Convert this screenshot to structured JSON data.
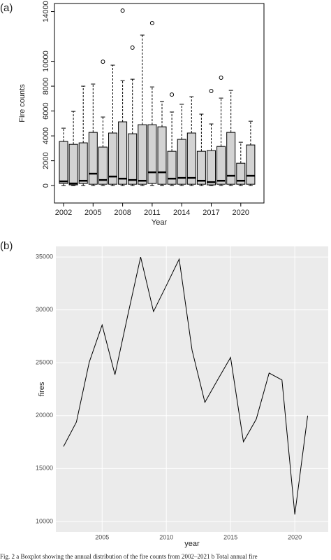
{
  "chart_data": [
    {
      "type": "box",
      "label": "(a)",
      "y_label": "Fire counts",
      "x_label": "Year",
      "color": "#d3d3d3",
      "categories": [
        "2002",
        null,
        null,
        "2005",
        null,
        null,
        "2008",
        null,
        null,
        "2011",
        null,
        null,
        "2014",
        null,
        null,
        "2017",
        null,
        null,
        "2020",
        null
      ],
      "boxes": [
        {
          "min": 0,
          "q1": 170,
          "median": 340,
          "q3": 3550,
          "max": 4620,
          "outliers": []
        },
        {
          "min": 0,
          "q1": 60,
          "median": 170,
          "q3": 3320,
          "max": 5970,
          "outliers": []
        },
        {
          "min": 0,
          "q1": 170,
          "median": 390,
          "q3": 3440,
          "max": 8000,
          "outliers": []
        },
        {
          "min": 0,
          "q1": 110,
          "median": 960,
          "q3": 4280,
          "max": 8170,
          "outliers": []
        },
        {
          "min": 0,
          "q1": 110,
          "median": 450,
          "q3": 3100,
          "max": 5520,
          "outliers": [
            9970
          ]
        },
        {
          "min": 0,
          "q1": 110,
          "median": 730,
          "q3": 4230,
          "max": 9690,
          "outliers": []
        },
        {
          "min": 0,
          "q1": 110,
          "median": 560,
          "q3": 5130,
          "max": 8450,
          "outliers": [
            14080
          ]
        },
        {
          "min": 0,
          "q1": 110,
          "median": 450,
          "q3": 4170,
          "max": 8560,
          "outliers": [
            11100
          ]
        },
        {
          "min": 0,
          "q1": 110,
          "median": 390,
          "q3": 4900,
          "max": 12110,
          "outliers": []
        },
        {
          "min": 0,
          "q1": 170,
          "median": 1070,
          "q3": 4900,
          "max": 7940,
          "outliers": [
            13070
          ]
        },
        {
          "min": 0,
          "q1": 110,
          "median": 1070,
          "q3": 4730,
          "max": 6760,
          "outliers": []
        },
        {
          "min": 0,
          "q1": 110,
          "median": 560,
          "q3": 2760,
          "max": 5920,
          "outliers": [
            7320
          ]
        },
        {
          "min": 0,
          "q1": 110,
          "median": 620,
          "q3": 3720,
          "max": 6540,
          "outliers": []
        },
        {
          "min": 0,
          "q1": 110,
          "median": 620,
          "q3": 4230,
          "max": 7150,
          "outliers": []
        },
        {
          "min": 0,
          "q1": 110,
          "median": 390,
          "q3": 2760,
          "max": 5750,
          "outliers": []
        },
        {
          "min": 0,
          "q1": 60,
          "median": 280,
          "q3": 2820,
          "max": 4960,
          "outliers": [
            7610
          ]
        },
        {
          "min": 0,
          "q1": 110,
          "median": 390,
          "q3": 3150,
          "max": 7040,
          "outliers": [
            8680
          ]
        },
        {
          "min": 0,
          "q1": 110,
          "median": 790,
          "q3": 4280,
          "max": 7660,
          "outliers": []
        },
        {
          "min": 0,
          "q1": 110,
          "median": 390,
          "q3": 1800,
          "max": 3490,
          "outliers": []
        },
        {
          "min": 0,
          "q1": 110,
          "median": 790,
          "q3": 3270,
          "max": 5180,
          "outliers": []
        }
      ],
      "ylim": [
        -1400,
        14650
      ],
      "yticks": [
        0,
        2000,
        4000,
        6000,
        8000,
        10000,
        14000
      ]
    },
    {
      "type": "line",
      "label": "(b)",
      "y_label": "fires",
      "x_label": "year",
      "color": "#000000",
      "background": "#ebebeb",
      "grid": true,
      "x": [
        2002,
        2003,
        2004,
        2005,
        2006,
        2007,
        2008,
        2009,
        2010,
        2011,
        2012,
        2013,
        2014,
        2015,
        2016,
        2017,
        2018,
        2019,
        2020,
        2021
      ],
      "values": [
        17090,
        19400,
        25060,
        28570,
        23870,
        29500,
        35000,
        29840,
        32300,
        34800,
        26200,
        21260,
        23400,
        25500,
        17530,
        19670,
        24030,
        23370,
        10660,
        20000
      ],
      "xlim": [
        2001.4,
        2022.6
      ],
      "ylim": [
        9000,
        36000
      ],
      "xticks": [
        2005,
        2010,
        2015,
        2020
      ],
      "yticks": [
        10000,
        15000,
        20000,
        25000,
        30000,
        35000
      ]
    }
  ],
  "caption": "Fig. 2 a Boxplot showing the annual distribution of the fire counts from 2002–2021 b Total annual fire"
}
